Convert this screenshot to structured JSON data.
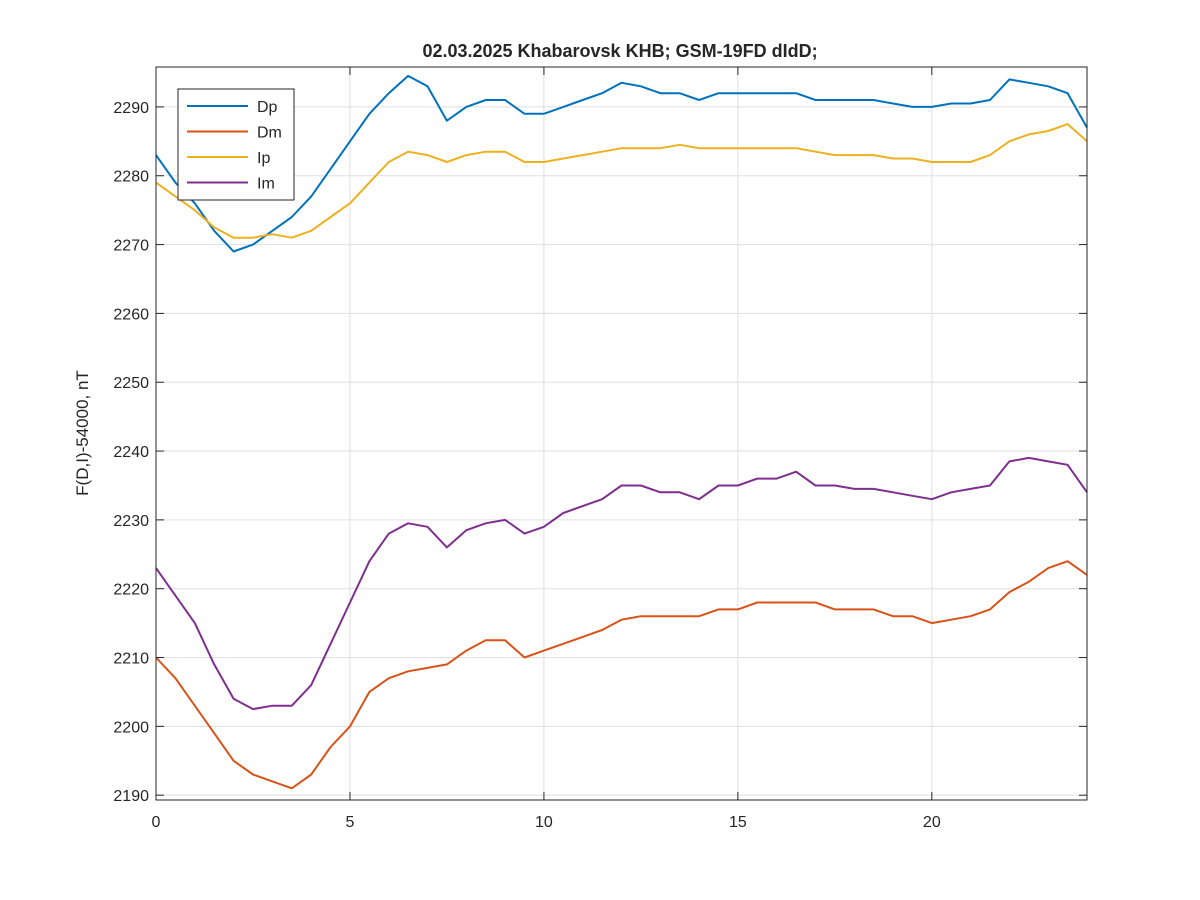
{
  "chart_data": {
    "type": "line",
    "title": "02.03.2025  Khabarovsk KHB; GSM-19FD dIdD;",
    "xlabel": "",
    "ylabel": "F(D,I)-54000, nT",
    "xlim": [
      0,
      24
    ],
    "ylim": [
      2189.3,
      2295.8
    ],
    "xticks": [
      0,
      5,
      10,
      15,
      20
    ],
    "yticks": [
      2190,
      2200,
      2210,
      2220,
      2230,
      2240,
      2250,
      2260,
      2270,
      2280,
      2290
    ],
    "grid": true,
    "legend_position": "top-left",
    "series": [
      {
        "name": "Dp",
        "color": "#0072BD",
        "x": [
          0,
          0.5,
          1,
          1.5,
          2,
          2.5,
          3,
          3.5,
          4,
          4.5,
          5,
          5.5,
          6,
          6.5,
          7,
          7.5,
          8,
          8.5,
          9,
          9.5,
          10,
          10.5,
          11,
          11.5,
          12,
          12.5,
          13,
          13.5,
          14,
          14.5,
          15,
          15.5,
          16,
          16.5,
          17,
          17.5,
          18,
          18.5,
          19,
          19.5,
          20,
          20.5,
          21,
          21.5,
          22,
          22.5,
          23,
          23.5,
          24
        ],
        "y": [
          2283,
          2279,
          2276,
          2272,
          2269,
          2270,
          2272,
          2274,
          2277,
          2281,
          2285,
          2289,
          2292,
          2294.5,
          2293,
          2288,
          2290,
          2291,
          2291,
          2289,
          2289,
          2290,
          2291,
          2292,
          2293.5,
          2293,
          2292,
          2292,
          2291,
          2292,
          2292,
          2292,
          2292,
          2292,
          2291,
          2291,
          2291,
          2291,
          2290.5,
          2290,
          2290,
          2290.5,
          2290.5,
          2291,
          2294,
          2293.5,
          2293,
          2292,
          2287
        ]
      },
      {
        "name": "Dm",
        "color": "#D95319",
        "x": [
          0,
          0.5,
          1,
          1.5,
          2,
          2.5,
          3,
          3.5,
          4,
          4.5,
          5,
          5.5,
          6,
          6.5,
          7,
          7.5,
          8,
          8.5,
          9,
          9.5,
          10,
          10.5,
          11,
          11.5,
          12,
          12.5,
          13,
          13.5,
          14,
          14.5,
          15,
          15.5,
          16,
          16.5,
          17,
          17.5,
          18,
          18.5,
          19,
          19.5,
          20,
          20.5,
          21,
          21.5,
          22,
          22.5,
          23,
          23.5,
          24
        ],
        "y": [
          2210,
          2207,
          2203,
          2199,
          2195,
          2193,
          2192,
          2191,
          2193,
          2197,
          2200,
          2205,
          2207,
          2208,
          2208.5,
          2209,
          2211,
          2212.5,
          2212.5,
          2210,
          2211,
          2212,
          2213,
          2214,
          2215.5,
          2216,
          2216,
          2216,
          2216,
          2217,
          2217,
          2218,
          2218,
          2218,
          2218,
          2217,
          2217,
          2217,
          2216,
          2216,
          2215,
          2215.5,
          2216,
          2217,
          2219.5,
          2221,
          2223,
          2224,
          2222
        ]
      },
      {
        "name": "Ip",
        "color": "#EDB120",
        "x": [
          0,
          0.5,
          1,
          1.5,
          2,
          2.5,
          3,
          3.5,
          4,
          4.5,
          5,
          5.5,
          6,
          6.5,
          7,
          7.5,
          8,
          8.5,
          9,
          9.5,
          10,
          10.5,
          11,
          11.5,
          12,
          12.5,
          13,
          13.5,
          14,
          14.5,
          15,
          15.5,
          16,
          16.5,
          17,
          17.5,
          18,
          18.5,
          19,
          19.5,
          20,
          20.5,
          21,
          21.5,
          22,
          22.5,
          23,
          23.5,
          24
        ],
        "y": [
          2279,
          2277,
          2275,
          2272.5,
          2271,
          2271,
          2271.5,
          2271,
          2272,
          2274,
          2276,
          2279,
          2282,
          2283.5,
          2283,
          2282,
          2283,
          2283.5,
          2283.5,
          2282,
          2282,
          2282.5,
          2283,
          2283.5,
          2284,
          2284,
          2284,
          2284.5,
          2284,
          2284,
          2284,
          2284,
          2284,
          2284,
          2283.5,
          2283,
          2283,
          2283,
          2282.5,
          2282.5,
          2282,
          2282,
          2282,
          2283,
          2285,
          2286,
          2286.5,
          2287.5,
          2285
        ]
      },
      {
        "name": "Im",
        "color": "#7E2F8E",
        "x": [
          0,
          0.5,
          1,
          1.5,
          2,
          2.5,
          3,
          3.5,
          4,
          4.5,
          5,
          5.5,
          6,
          6.5,
          7,
          7.5,
          8,
          8.5,
          9,
          9.5,
          10,
          10.5,
          11,
          11.5,
          12,
          12.5,
          13,
          13.5,
          14,
          14.5,
          15,
          15.5,
          16,
          16.5,
          17,
          17.5,
          18,
          18.5,
          19,
          19.5,
          20,
          20.5,
          21,
          21.5,
          22,
          22.5,
          23,
          23.5,
          24
        ],
        "y": [
          2223,
          2219,
          2215,
          2209,
          2204,
          2202.5,
          2203,
          2203,
          2206,
          2212,
          2218,
          2224,
          2228,
          2229.5,
          2229,
          2226,
          2228.5,
          2229.5,
          2230,
          2228,
          2229,
          2231,
          2232,
          2233,
          2235,
          2235,
          2234,
          2234,
          2233,
          2235,
          2235,
          2236,
          2236,
          2237,
          2235,
          2235,
          2234.5,
          2234.5,
          2234,
          2233.5,
          2233,
          2234,
          2234.5,
          2235,
          2238.5,
          2239,
          2238.5,
          2238,
          2234
        ]
      }
    ]
  }
}
